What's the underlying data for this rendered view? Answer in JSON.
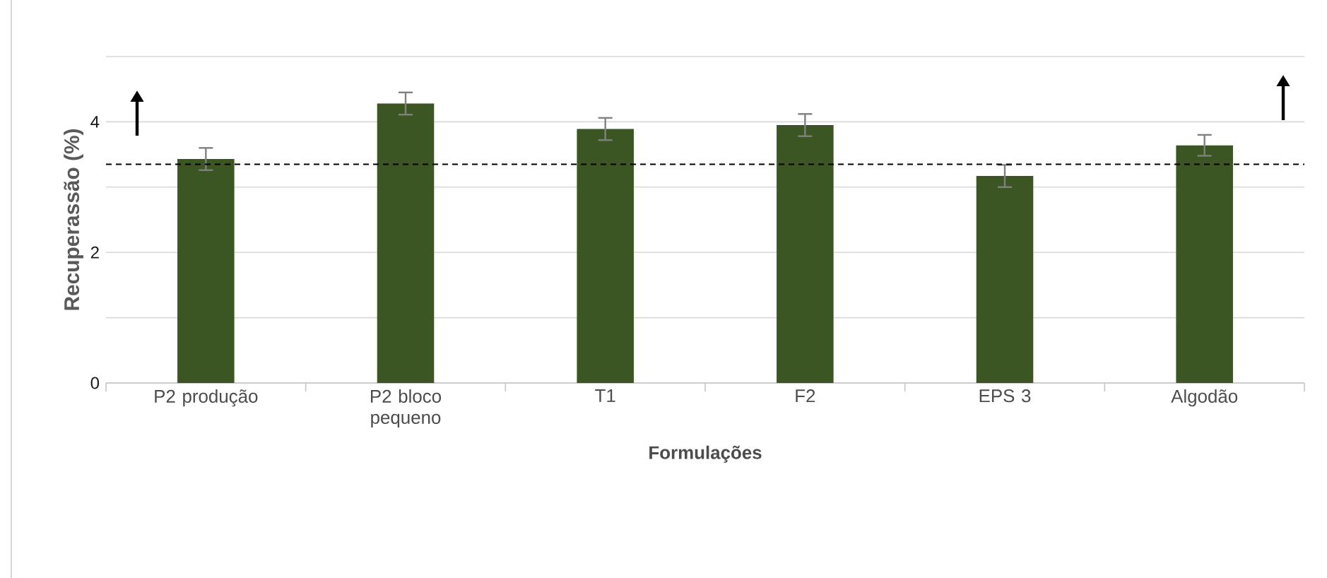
{
  "chart_data": {
    "type": "bar",
    "xlabel": "Formulações",
    "ylabel": "Recuperassão (%)",
    "categories": [
      "P2 produção",
      "P2 bloco pequeno",
      "T1",
      "F2",
      "EPS 3",
      "Algodão"
    ],
    "values": [
      3.43,
      4.28,
      3.89,
      3.95,
      3.17,
      3.64
    ],
    "errors": [
      0.17,
      0.17,
      0.17,
      0.17,
      0.17,
      0.16
    ],
    "color": "#3b5623",
    "ylim": [
      0,
      5
    ],
    "yticks": [
      0,
      {
        "value": 1,
        "label": null
      },
      2,
      {
        "value": 3,
        "label": null
      },
      4,
      {
        "value": 5,
        "label": null
      }
    ],
    "grid": "y",
    "ref_lines": [
      {
        "axis": "y",
        "value": 3.35,
        "color": "#000000",
        "line_style": "dashed"
      }
    ]
  }
}
